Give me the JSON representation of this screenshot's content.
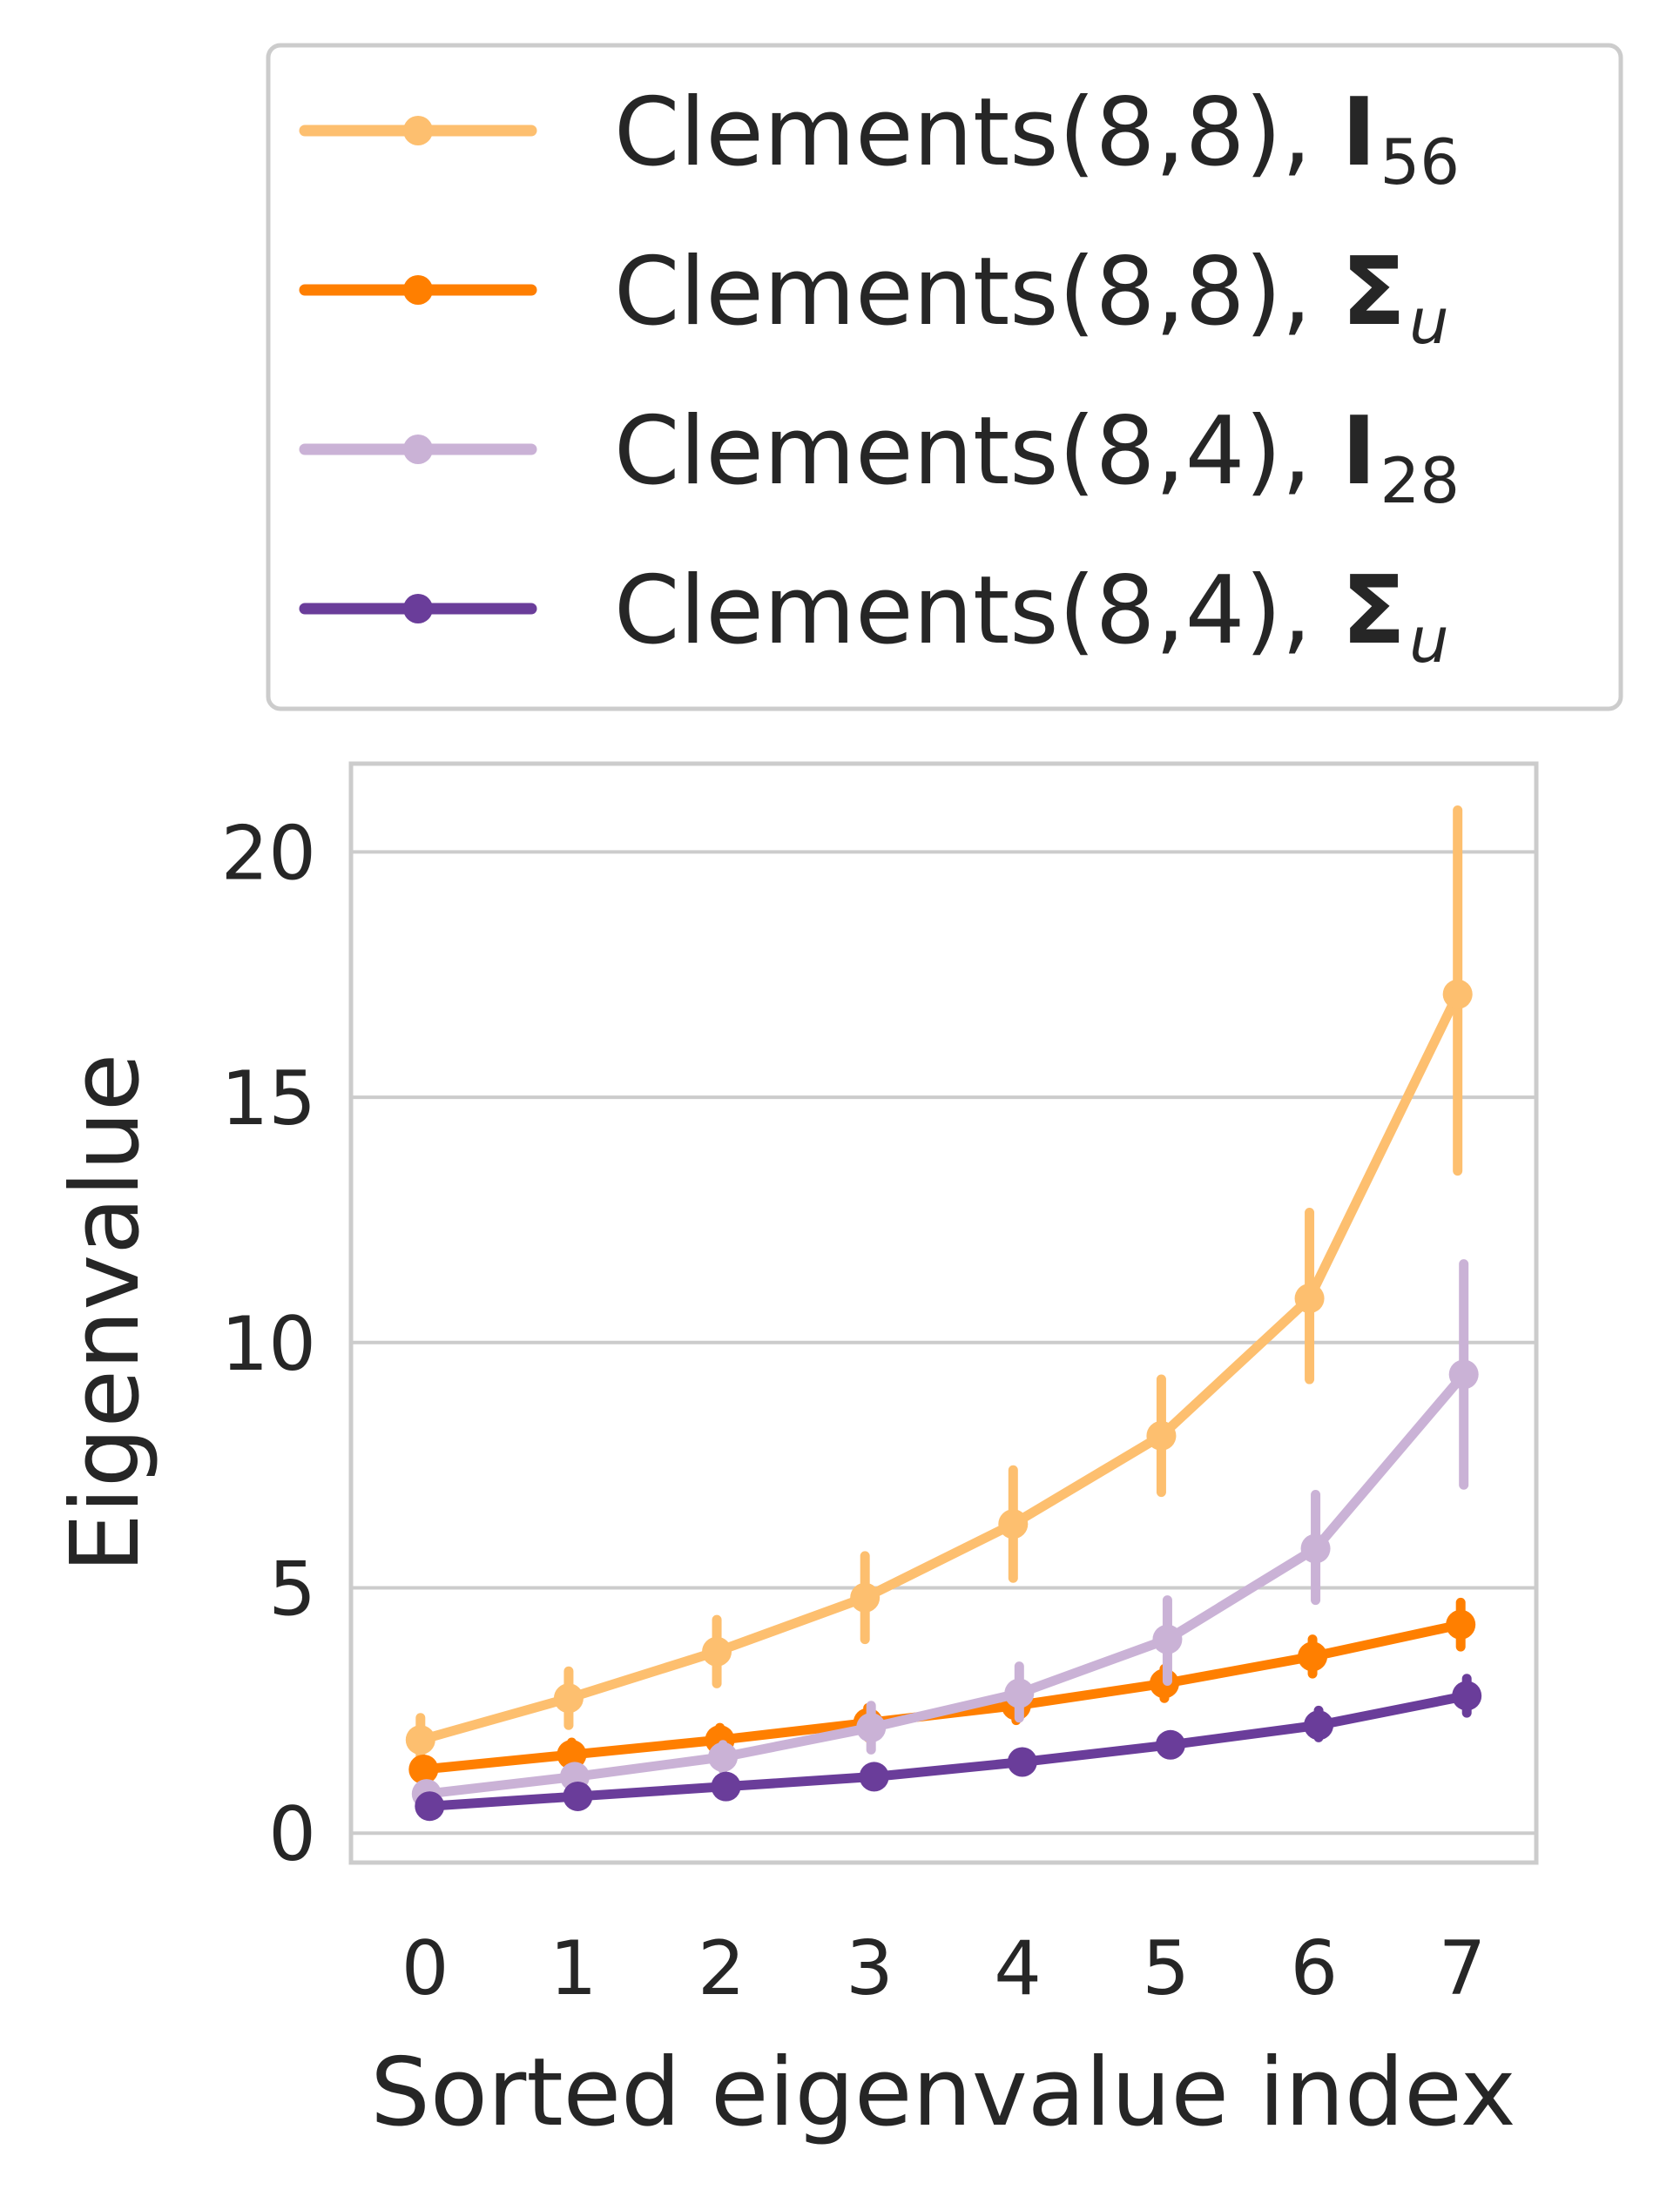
{
  "chart_data": {
    "type": "line",
    "title": "",
    "xlabel": "Sorted eigenvalue index",
    "ylabel": "Eigenvalue",
    "x": [
      0,
      1,
      2,
      3,
      4,
      5,
      6,
      7
    ],
    "x_tick_labels": [
      "0",
      "1",
      "2",
      "3",
      "4",
      "5",
      "6",
      "7"
    ],
    "y_ticks": [
      0,
      5,
      10,
      15,
      20
    ],
    "y_tick_labels": [
      "0",
      "5",
      "10",
      "15",
      "20"
    ],
    "xlim": [
      -0.5,
      7.5
    ],
    "ylim": [
      -0.6,
      21.8
    ],
    "grid": "horizontal",
    "legend_position": "top, above plot",
    "series": [
      {
        "name": "Clements(8,8), I56",
        "label_main": "Clements(8,8), ",
        "label_symbol": "I",
        "label_sub": "56",
        "color": "#fdbf6f",
        "values": [
          1.9,
          2.75,
          3.7,
          4.8,
          6.3,
          8.1,
          10.9,
          17.1
        ],
        "err_low": [
          1.5,
          2.2,
          3.05,
          3.95,
          5.2,
          6.95,
          9.25,
          13.5
        ],
        "err_high": [
          2.35,
          3.3,
          4.35,
          5.65,
          7.4,
          9.25,
          12.65,
          20.85
        ]
      },
      {
        "name": "Clements(8,8), Σu",
        "label_main": "Clements(8,8), ",
        "label_symbol": "Σ",
        "label_sub": "u",
        "color": "#ff7f00",
        "values": [
          1.3,
          1.6,
          1.9,
          2.25,
          2.6,
          3.05,
          3.6,
          4.25
        ],
        "err_low": [
          1.1,
          1.4,
          1.65,
          1.95,
          2.3,
          2.75,
          3.25,
          3.8
        ],
        "err_high": [
          1.5,
          1.85,
          2.15,
          2.55,
          2.9,
          3.35,
          3.95,
          4.7
        ]
      },
      {
        "name": "Clements(8,4), I28",
        "label_main": "Clements(8,4), ",
        "label_symbol": "I",
        "label_sub": "28",
        "color": "#cab2d6",
        "values": [
          0.8,
          1.15,
          1.55,
          2.15,
          2.85,
          3.95,
          5.8,
          9.35
        ],
        "err_low": [
          0.65,
          0.95,
          1.3,
          1.7,
          2.35,
          3.1,
          4.75,
          7.1
        ],
        "err_high": [
          0.95,
          1.35,
          1.8,
          2.6,
          3.4,
          4.75,
          6.9,
          11.6
        ]
      },
      {
        "name": "Clements(8,4), Σu",
        "label_main": "Clements(8,4), ",
        "label_symbol": "Σ",
        "label_sub": "u",
        "color": "#6a3d9a",
        "values": [
          0.55,
          0.75,
          0.95,
          1.15,
          1.45,
          1.8,
          2.2,
          2.8
        ],
        "err_low": [
          0.45,
          0.6,
          0.8,
          0.95,
          1.25,
          1.6,
          1.95,
          2.45
        ],
        "err_high": [
          0.65,
          0.9,
          1.1,
          1.35,
          1.65,
          2.0,
          2.5,
          3.15
        ]
      }
    ]
  }
}
